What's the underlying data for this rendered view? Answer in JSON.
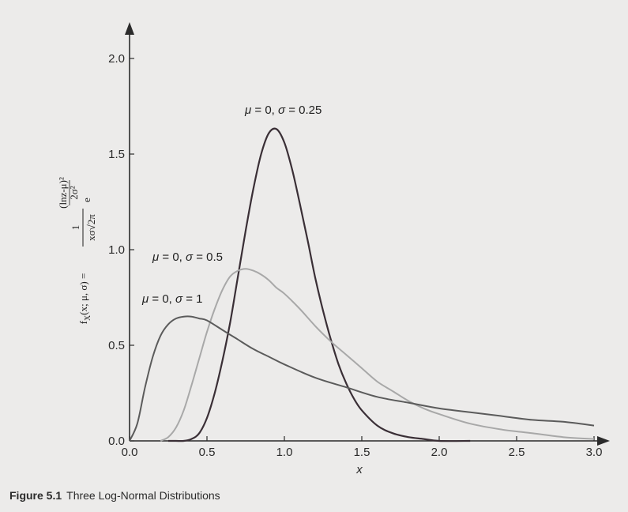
{
  "chart_data": {
    "type": "line",
    "title": "",
    "xlabel": "x",
    "ylabel": {
      "lhs": "f",
      "lhs_sub": "X",
      "lhs_args": "(x; μ, σ) =",
      "numerator": "1",
      "denominator": "xσ√2π",
      "base": "e",
      "exp_numerator": "(lnz-μ)²",
      "exp_denominator": "2σ²"
    },
    "xlim": [
      0,
      3.0
    ],
    "ylim": [
      0,
      2.0
    ],
    "xticks": [
      "0.0",
      "0.5",
      "1.0",
      "1.5",
      "2.0",
      "2.5",
      "3.0"
    ],
    "yticks": [
      "0.0",
      "0.5",
      "1.0",
      "1.5",
      "2.0"
    ],
    "grid": false,
    "legend": "none",
    "series": [
      {
        "name": "μ = 0, σ = 0.25",
        "color": "#3a2f36",
        "x": [
          0.25,
          0.3,
          0.35,
          0.4,
          0.45,
          0.5,
          0.55,
          0.6,
          0.65,
          0.7,
          0.75,
          0.8,
          0.85,
          0.9,
          0.95,
          1.0,
          1.05,
          1.1,
          1.15,
          1.2,
          1.25,
          1.3,
          1.35,
          1.4,
          1.45,
          1.5,
          1.6,
          1.7,
          1.8,
          1.9,
          2.0,
          2.2
        ],
        "y": [
          0.0,
          0.0,
          0.0,
          0.01,
          0.04,
          0.12,
          0.25,
          0.42,
          0.62,
          0.86,
          1.1,
          1.32,
          1.5,
          1.61,
          1.63,
          1.56,
          1.42,
          1.24,
          1.05,
          0.85,
          0.68,
          0.53,
          0.4,
          0.3,
          0.22,
          0.16,
          0.08,
          0.04,
          0.02,
          0.01,
          0.0,
          0.0
        ]
      },
      {
        "name": "μ = 0, σ = 0.5",
        "color": "#a8a8a8",
        "x": [
          0.2,
          0.25,
          0.3,
          0.35,
          0.4,
          0.45,
          0.5,
          0.55,
          0.6,
          0.65,
          0.7,
          0.75,
          0.8,
          0.85,
          0.9,
          0.95,
          1.0,
          1.1,
          1.2,
          1.3,
          1.4,
          1.5,
          1.6,
          1.7,
          1.8,
          1.9,
          2.0,
          2.2,
          2.4,
          2.6,
          2.8,
          3.0
        ],
        "y": [
          0.0,
          0.02,
          0.07,
          0.16,
          0.29,
          0.43,
          0.57,
          0.69,
          0.79,
          0.86,
          0.89,
          0.9,
          0.89,
          0.87,
          0.84,
          0.8,
          0.77,
          0.69,
          0.6,
          0.52,
          0.45,
          0.38,
          0.31,
          0.26,
          0.21,
          0.17,
          0.14,
          0.09,
          0.06,
          0.04,
          0.02,
          0.01
        ]
      },
      {
        "name": "μ = 0, σ = 1",
        "color": "#5b5b5b",
        "x": [
          0.0,
          0.05,
          0.1,
          0.15,
          0.2,
          0.25,
          0.3,
          0.35,
          0.4,
          0.45,
          0.5,
          0.6,
          0.7,
          0.8,
          0.9,
          1.0,
          1.2,
          1.4,
          1.6,
          1.8,
          2.0,
          2.2,
          2.4,
          2.6,
          2.8,
          3.0
        ],
        "y": [
          0.0,
          0.09,
          0.28,
          0.44,
          0.55,
          0.61,
          0.64,
          0.65,
          0.65,
          0.64,
          0.63,
          0.58,
          0.53,
          0.48,
          0.44,
          0.4,
          0.33,
          0.28,
          0.23,
          0.2,
          0.17,
          0.15,
          0.13,
          0.11,
          0.1,
          0.08
        ]
      }
    ],
    "annotations": [
      {
        "text": "μ = 0, σ = 0.25",
        "series": 0
      },
      {
        "text": "μ = 0, σ = 0.5",
        "series": 1
      },
      {
        "text": "μ = 0, σ = 1",
        "series": 2
      }
    ]
  },
  "caption": {
    "figure_number": "Figure 5.1",
    "text": "Three Log-Normal Distributions"
  }
}
